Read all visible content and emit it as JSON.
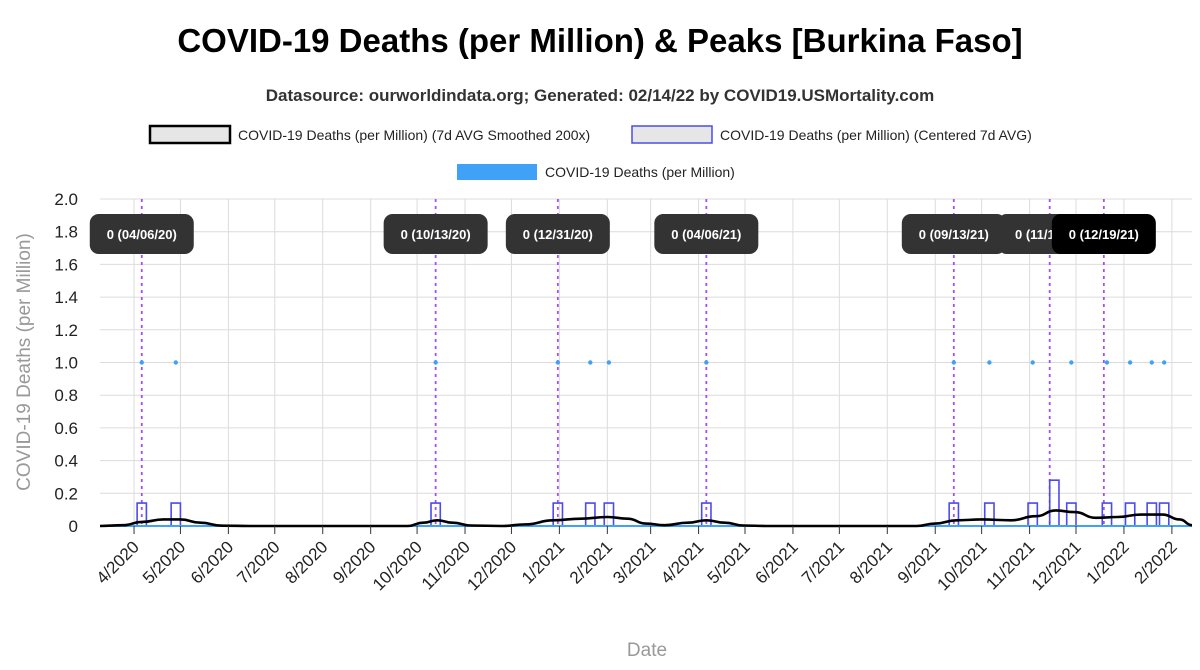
{
  "chart_data": {
    "type": "line",
    "title": "COVID-19 Deaths (per Million) & Peaks [Burkina Faso]",
    "subtitle": "Datasource: ourworldindata.org; Generated: 02/14/22 by COVID19.USMortality.com",
    "xlabel": "Date",
    "ylabel": "COVID-19 Deaths (per Million)",
    "x_range": [
      "2020-03-10",
      "2022-02-14"
    ],
    "ylim": [
      0,
      2.0
    ],
    "y_ticks": [
      "0",
      "0.2",
      "0.4",
      "0.6",
      "0.8",
      "1.0",
      "1.2",
      "1.4",
      "1.6",
      "1.8",
      "2.0"
    ],
    "x_ticks": [
      {
        "label": "4/2020",
        "date": "2020-04-01"
      },
      {
        "label": "5/2020",
        "date": "2020-05-01"
      },
      {
        "label": "6/2020",
        "date": "2020-06-01"
      },
      {
        "label": "7/2020",
        "date": "2020-07-01"
      },
      {
        "label": "8/2020",
        "date": "2020-08-01"
      },
      {
        "label": "9/2020",
        "date": "2020-09-01"
      },
      {
        "label": "10/2020",
        "date": "2020-10-01"
      },
      {
        "label": "11/2020",
        "date": "2020-11-01"
      },
      {
        "label": "12/2020",
        "date": "2020-12-01"
      },
      {
        "label": "1/2021",
        "date": "2021-01-01"
      },
      {
        "label": "2/2021",
        "date": "2021-02-01"
      },
      {
        "label": "3/2021",
        "date": "2021-03-01"
      },
      {
        "label": "4/2021",
        "date": "2021-04-01"
      },
      {
        "label": "5/2021",
        "date": "2021-05-01"
      },
      {
        "label": "6/2021",
        "date": "2021-06-01"
      },
      {
        "label": "7/2021",
        "date": "2021-07-01"
      },
      {
        "label": "8/2021",
        "date": "2021-08-01"
      },
      {
        "label": "9/2021",
        "date": "2021-09-01"
      },
      {
        "label": "10/2021",
        "date": "2021-10-01"
      },
      {
        "label": "11/2021",
        "date": "2021-11-01"
      },
      {
        "label": "12/2021",
        "date": "2021-12-01"
      },
      {
        "label": "1/2022",
        "date": "2022-01-01"
      },
      {
        "label": "2/2022",
        "date": "2022-02-01"
      }
    ],
    "grid": true,
    "legend": {
      "position": "top",
      "entries": [
        {
          "label": "COVID-19 Deaths (per Million) (7d AVG Smoothed 200x)",
          "color": "#000000",
          "fill": "#e6e6e6"
        },
        {
          "label": "COVID-19 Deaths (per Million) (Centered 7d AVG)",
          "color": "#4b4bef",
          "fill": "#e6e6e6"
        },
        {
          "label": "COVID-19 Deaths (per Million)",
          "color": "#3fa2f7",
          "fill": "#3fa2f7"
        }
      ]
    },
    "series": [
      {
        "name": "COVID-19 Deaths (per Million)",
        "type": "scatter",
        "color": "#3fa2f7",
        "points": [
          {
            "x": "2020-04-06",
            "y": 1.0
          },
          {
            "x": "2020-04-28",
            "y": 1.0
          },
          {
            "x": "2020-10-13",
            "y": 1.0
          },
          {
            "x": "2020-12-31",
            "y": 1.0
          },
          {
            "x": "2021-01-21",
            "y": 1.0
          },
          {
            "x": "2021-02-02",
            "y": 1.0
          },
          {
            "x": "2021-04-06",
            "y": 1.0
          },
          {
            "x": "2021-09-13",
            "y": 1.0
          },
          {
            "x": "2021-10-06",
            "y": 1.0
          },
          {
            "x": "2021-11-03",
            "y": 1.0
          },
          {
            "x": "2021-11-28",
            "y": 1.0
          },
          {
            "x": "2021-12-21",
            "y": 1.0
          },
          {
            "x": "2022-01-05",
            "y": 1.0
          },
          {
            "x": "2022-01-19",
            "y": 1.0
          },
          {
            "x": "2022-01-27",
            "y": 1.0
          }
        ]
      },
      {
        "name": "COVID-19 Deaths (per Million) (Centered 7d AVG)",
        "type": "step",
        "color": "#4b4bef",
        "pulses": [
          {
            "start": "2020-04-03",
            "end": "2020-04-09",
            "y": 0.14
          },
          {
            "start": "2020-04-25",
            "end": "2020-05-01",
            "y": 0.14
          },
          {
            "start": "2020-10-10",
            "end": "2020-10-16",
            "y": 0.14
          },
          {
            "start": "2020-12-28",
            "end": "2021-01-03",
            "y": 0.14
          },
          {
            "start": "2021-01-18",
            "end": "2021-01-24",
            "y": 0.14
          },
          {
            "start": "2021-01-30",
            "end": "2021-02-05",
            "y": 0.14
          },
          {
            "start": "2021-04-03",
            "end": "2021-04-09",
            "y": 0.14
          },
          {
            "start": "2021-09-10",
            "end": "2021-09-16",
            "y": 0.14
          },
          {
            "start": "2021-10-03",
            "end": "2021-10-09",
            "y": 0.14
          },
          {
            "start": "2021-10-31",
            "end": "2021-11-06",
            "y": 0.14
          },
          {
            "start": "2021-11-14",
            "end": "2021-11-20",
            "y": 0.28
          },
          {
            "start": "2021-11-25",
            "end": "2021-12-01",
            "y": 0.14
          },
          {
            "start": "2021-12-18",
            "end": "2021-12-24",
            "y": 0.14
          },
          {
            "start": "2022-01-02",
            "end": "2022-01-08",
            "y": 0.14
          },
          {
            "start": "2022-01-16",
            "end": "2022-01-22",
            "y": 0.14
          },
          {
            "start": "2022-01-24",
            "end": "2022-01-30",
            "y": 0.14
          }
        ]
      },
      {
        "name": "COVID-19 Deaths (per Million) (7d AVG Smoothed 200x)",
        "type": "line",
        "color": "#000000",
        "points": [
          {
            "x": "2020-03-10",
            "y": 0
          },
          {
            "x": "2020-03-25",
            "y": 0.005
          },
          {
            "x": "2020-04-06",
            "y": 0.025
          },
          {
            "x": "2020-04-20",
            "y": 0.04
          },
          {
            "x": "2020-05-01",
            "y": 0.04
          },
          {
            "x": "2020-05-14",
            "y": 0.02
          },
          {
            "x": "2020-05-28",
            "y": 0.002
          },
          {
            "x": "2020-06-15",
            "y": 0
          },
          {
            "x": "2020-09-25",
            "y": 0
          },
          {
            "x": "2020-10-05",
            "y": 0.02
          },
          {
            "x": "2020-10-14",
            "y": 0.035
          },
          {
            "x": "2020-10-24",
            "y": 0.02
          },
          {
            "x": "2020-11-05",
            "y": 0.003
          },
          {
            "x": "2020-11-25",
            "y": 0
          },
          {
            "x": "2020-12-10",
            "y": 0.01
          },
          {
            "x": "2020-12-28",
            "y": 0.035
          },
          {
            "x": "2021-01-15",
            "y": 0.045
          },
          {
            "x": "2021-02-01",
            "y": 0.055
          },
          {
            "x": "2021-02-14",
            "y": 0.045
          },
          {
            "x": "2021-02-26",
            "y": 0.015
          },
          {
            "x": "2021-03-10",
            "y": 0.005
          },
          {
            "x": "2021-03-25",
            "y": 0.02
          },
          {
            "x": "2021-04-06",
            "y": 0.035
          },
          {
            "x": "2021-04-18",
            "y": 0.02
          },
          {
            "x": "2021-04-30",
            "y": 0.003
          },
          {
            "x": "2021-05-15",
            "y": 0
          },
          {
            "x": "2021-08-20",
            "y": 0
          },
          {
            "x": "2021-09-01",
            "y": 0.015
          },
          {
            "x": "2021-09-15",
            "y": 0.035
          },
          {
            "x": "2021-10-01",
            "y": 0.04
          },
          {
            "x": "2021-10-20",
            "y": 0.035
          },
          {
            "x": "2021-11-05",
            "y": 0.06
          },
          {
            "x": "2021-11-18",
            "y": 0.095
          },
          {
            "x": "2021-11-30",
            "y": 0.085
          },
          {
            "x": "2021-12-14",
            "y": 0.05
          },
          {
            "x": "2021-12-28",
            "y": 0.055
          },
          {
            "x": "2022-01-12",
            "y": 0.07
          },
          {
            "x": "2022-01-26",
            "y": 0.07
          },
          {
            "x": "2022-02-06",
            "y": 0.04
          },
          {
            "x": "2022-02-14",
            "y": 0.005
          }
        ]
      }
    ],
    "peaks": [
      {
        "date": "2020-04-06",
        "label": "0 (04/06/20)"
      },
      {
        "date": "2020-10-13",
        "label": "0 (10/13/20)"
      },
      {
        "date": "2020-12-31",
        "label": "0 (12/31/20)"
      },
      {
        "date": "2021-04-06",
        "label": "0 (04/06/21)"
      },
      {
        "date": "2021-09-13",
        "label": "0 (09/13/21)"
      },
      {
        "date": "2021-11-14",
        "label": "0 (11/14/21)"
      },
      {
        "date": "2021-12-19",
        "label": "0 (12/19/21)"
      }
    ],
    "peak_line_color": "#a64df5"
  }
}
